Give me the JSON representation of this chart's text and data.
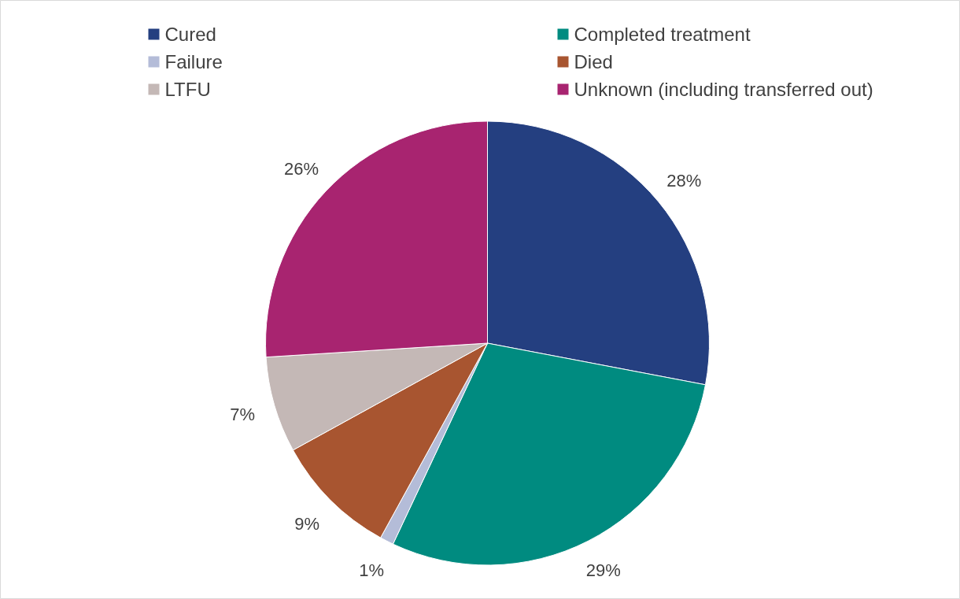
{
  "chart_data": {
    "type": "pie",
    "categories": [
      "Cured",
      "Completed treatment",
      "Failure",
      "Died",
      "LTFU",
      "Unknown (including transferred out)"
    ],
    "values": [
      28,
      29,
      1,
      9,
      7,
      26
    ],
    "colors": [
      "#243f80",
      "#008b80",
      "#b4bcd8",
      "#a85530",
      "#c4b8b6",
      "#a82470"
    ],
    "value_labels": [
      "28%",
      "29%",
      "1%",
      "9%",
      "7%",
      "26%"
    ],
    "legend": "top"
  }
}
